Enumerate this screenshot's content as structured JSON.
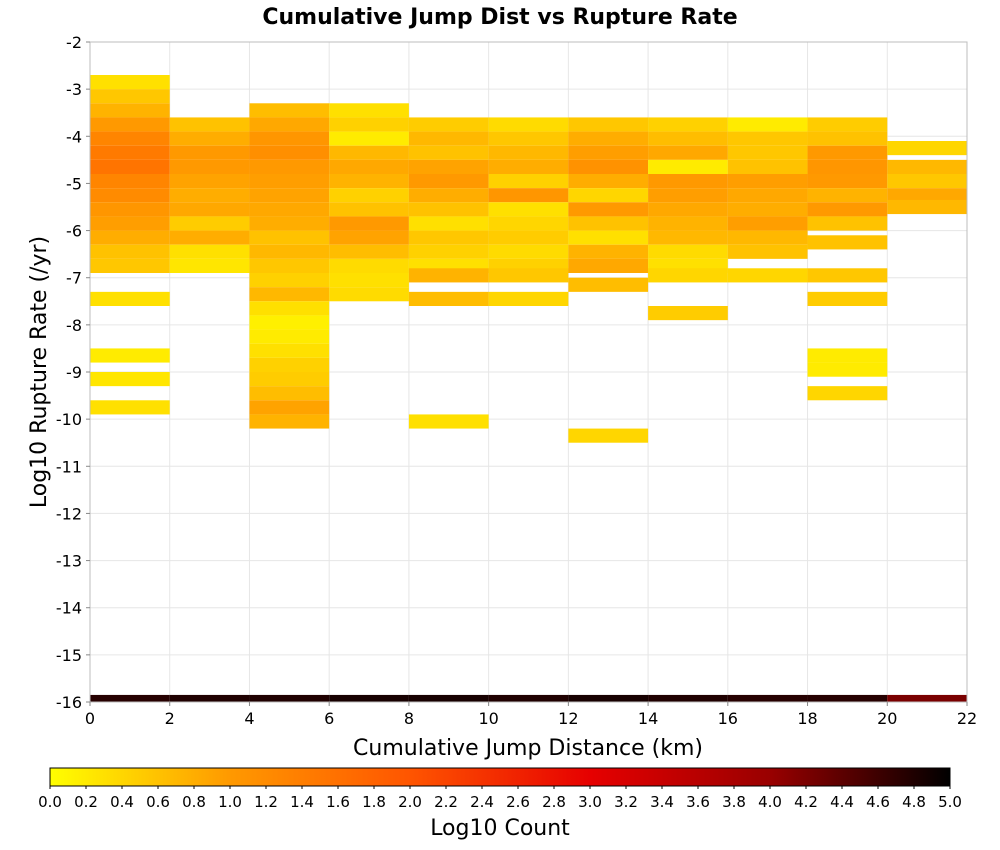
{
  "chart_data": {
    "type": "heatmap",
    "title": "Cumulative Jump Dist vs Rupture Rate",
    "xlabel": "Cumulative Jump Distance (km)",
    "ylabel": "Log10 Rupture Rate (/yr)",
    "xlim": [
      0,
      22
    ],
    "ylim": [
      -16,
      -2
    ],
    "x_ticks": [
      0,
      2,
      4,
      6,
      8,
      10,
      12,
      14,
      16,
      18,
      20,
      22
    ],
    "y_ticks": [
      -2,
      -3,
      -4,
      -5,
      -6,
      -7,
      -8,
      -9,
      -10,
      -11,
      -12,
      -13,
      -14,
      -15,
      -16
    ],
    "grid": true,
    "x_bin_width": 2,
    "y_bin_width": 0.3,
    "colorbar": {
      "label": "Log10 Count",
      "range": [
        0,
        5
      ],
      "ticks": [
        0.0,
        0.2,
        0.4,
        0.6,
        0.8,
        1.0,
        1.2,
        1.4,
        1.6,
        1.8,
        2.0,
        2.2,
        2.4,
        2.6,
        2.8,
        3.0,
        3.2,
        3.4,
        3.6,
        3.8,
        4.0,
        4.2,
        4.4,
        4.6,
        4.8,
        5.0
      ],
      "colors": [
        "#ffff00",
        "#ff9900",
        "#ff5500",
        "#e60000",
        "#990000",
        "#000000"
      ]
    },
    "bins": [
      {
        "x": 1,
        "y": -2.85,
        "v": 0.3
      },
      {
        "x": 1,
        "y": -3.15,
        "v": 0.55
      },
      {
        "x": 1,
        "y": -3.45,
        "v": 0.75
      },
      {
        "x": 1,
        "y": -3.75,
        "v": 1.0
      },
      {
        "x": 1,
        "y": -4.05,
        "v": 1.3
      },
      {
        "x": 1,
        "y": -4.35,
        "v": 1.45
      },
      {
        "x": 1,
        "y": -4.65,
        "v": 1.55
      },
      {
        "x": 1,
        "y": -4.95,
        "v": 1.3
      },
      {
        "x": 1,
        "y": -5.25,
        "v": 1.2
      },
      {
        "x": 1,
        "y": -5.55,
        "v": 1.05
      },
      {
        "x": 1,
        "y": -5.85,
        "v": 0.95
      },
      {
        "x": 1,
        "y": -6.15,
        "v": 0.8
      },
      {
        "x": 1,
        "y": -6.45,
        "v": 0.6
      },
      {
        "x": 1,
        "y": -6.75,
        "v": 0.55
      },
      {
        "x": 1,
        "y": -7.45,
        "v": 0.3
      },
      {
        "x": 1,
        "y": -8.65,
        "v": 0.2
      },
      {
        "x": 1,
        "y": -9.15,
        "v": 0.25
      },
      {
        "x": 1,
        "y": -9.75,
        "v": 0.3
      },
      {
        "x": 3,
        "y": -3.75,
        "v": 0.6
      },
      {
        "x": 3,
        "y": -4.05,
        "v": 0.8
      },
      {
        "x": 3,
        "y": -4.35,
        "v": 1.0
      },
      {
        "x": 3,
        "y": -4.65,
        "v": 1.0
      },
      {
        "x": 3,
        "y": -4.95,
        "v": 0.9
      },
      {
        "x": 3,
        "y": -5.25,
        "v": 0.8
      },
      {
        "x": 3,
        "y": -5.55,
        "v": 0.85
      },
      {
        "x": 3,
        "y": -5.85,
        "v": 0.5
      },
      {
        "x": 3,
        "y": -6.15,
        "v": 0.8
      },
      {
        "x": 3,
        "y": -6.45,
        "v": 0.3
      },
      {
        "x": 3,
        "y": -6.75,
        "v": 0.25
      },
      {
        "x": 5,
        "y": -3.45,
        "v": 0.65
      },
      {
        "x": 5,
        "y": -3.75,
        "v": 0.85
      },
      {
        "x": 5,
        "y": -4.05,
        "v": 1.05
      },
      {
        "x": 5,
        "y": -4.35,
        "v": 1.15
      },
      {
        "x": 5,
        "y": -4.65,
        "v": 1.0
      },
      {
        "x": 5,
        "y": -4.95,
        "v": 0.95
      },
      {
        "x": 5,
        "y": -5.25,
        "v": 0.9
      },
      {
        "x": 5,
        "y": -5.55,
        "v": 0.85
      },
      {
        "x": 5,
        "y": -5.85,
        "v": 0.8
      },
      {
        "x": 5,
        "y": -6.15,
        "v": 0.6
      },
      {
        "x": 5,
        "y": -6.45,
        "v": 0.7
      },
      {
        "x": 5,
        "y": -6.75,
        "v": 0.55
      },
      {
        "x": 5,
        "y": -7.05,
        "v": 0.45
      },
      {
        "x": 5,
        "y": -7.35,
        "v": 0.7
      },
      {
        "x": 5,
        "y": -7.65,
        "v": 0.3
      },
      {
        "x": 5,
        "y": -7.95,
        "v": 0.15
      },
      {
        "x": 5,
        "y": -8.25,
        "v": 0.2
      },
      {
        "x": 5,
        "y": -8.55,
        "v": 0.3
      },
      {
        "x": 5,
        "y": -8.85,
        "v": 0.45
      },
      {
        "x": 5,
        "y": -9.15,
        "v": 0.5
      },
      {
        "x": 5,
        "y": -9.45,
        "v": 0.65
      },
      {
        "x": 5,
        "y": -9.75,
        "v": 0.9
      },
      {
        "x": 5,
        "y": -10.05,
        "v": 0.75
      },
      {
        "x": 7,
        "y": -3.45,
        "v": 0.3
      },
      {
        "x": 7,
        "y": -3.75,
        "v": 0.45
      },
      {
        "x": 7,
        "y": -4.05,
        "v": 0.2
      },
      {
        "x": 7,
        "y": -4.35,
        "v": 0.7
      },
      {
        "x": 7,
        "y": -4.65,
        "v": 0.85
      },
      {
        "x": 7,
        "y": -4.95,
        "v": 0.75
      },
      {
        "x": 7,
        "y": -5.25,
        "v": 0.45
      },
      {
        "x": 7,
        "y": -5.55,
        "v": 0.6
      },
      {
        "x": 7,
        "y": -5.85,
        "v": 1.0
      },
      {
        "x": 7,
        "y": -6.15,
        "v": 0.9
      },
      {
        "x": 7,
        "y": -6.45,
        "v": 0.65
      },
      {
        "x": 7,
        "y": -6.75,
        "v": 0.35
      },
      {
        "x": 7,
        "y": -7.05,
        "v": 0.3
      },
      {
        "x": 7,
        "y": -7.35,
        "v": 0.35
      },
      {
        "x": 9,
        "y": -3.75,
        "v": 0.5
      },
      {
        "x": 9,
        "y": -4.05,
        "v": 0.7
      },
      {
        "x": 9,
        "y": -4.35,
        "v": 0.6
      },
      {
        "x": 9,
        "y": -4.65,
        "v": 0.9
      },
      {
        "x": 9,
        "y": -4.95,
        "v": 1.0
      },
      {
        "x": 9,
        "y": -5.25,
        "v": 0.8
      },
      {
        "x": 9,
        "y": -5.55,
        "v": 0.6
      },
      {
        "x": 9,
        "y": -5.85,
        "v": 0.3
      },
      {
        "x": 9,
        "y": -6.15,
        "v": 0.55
      },
      {
        "x": 9,
        "y": -6.45,
        "v": 0.45
      },
      {
        "x": 9,
        "y": -6.75,
        "v": 0.3
      },
      {
        "x": 9,
        "y": -6.95,
        "v": 0.75
      },
      {
        "x": 9,
        "y": -7.45,
        "v": 0.65
      },
      {
        "x": 9,
        "y": -10.05,
        "v": 0.3
      },
      {
        "x": 11,
        "y": -3.75,
        "v": 0.35
      },
      {
        "x": 11,
        "y": -4.05,
        "v": 0.55
      },
      {
        "x": 11,
        "y": -4.35,
        "v": 0.7
      },
      {
        "x": 11,
        "y": -4.65,
        "v": 0.8
      },
      {
        "x": 11,
        "y": -4.95,
        "v": 0.45
      },
      {
        "x": 11,
        "y": -5.25,
        "v": 1.05
      },
      {
        "x": 11,
        "y": -5.55,
        "v": 0.3
      },
      {
        "x": 11,
        "y": -5.85,
        "v": 0.4
      },
      {
        "x": 11,
        "y": -6.15,
        "v": 0.5
      },
      {
        "x": 11,
        "y": -6.45,
        "v": 0.35
      },
      {
        "x": 11,
        "y": -6.75,
        "v": 0.45
      },
      {
        "x": 11,
        "y": -6.95,
        "v": 0.55
      },
      {
        "x": 11,
        "y": -7.45,
        "v": 0.4
      },
      {
        "x": 13,
        "y": -3.75,
        "v": 0.55
      },
      {
        "x": 13,
        "y": -4.05,
        "v": 0.8
      },
      {
        "x": 13,
        "y": -4.35,
        "v": 0.95
      },
      {
        "x": 13,
        "y": -4.65,
        "v": 1.1
      },
      {
        "x": 13,
        "y": -4.95,
        "v": 0.8
      },
      {
        "x": 13,
        "y": -5.25,
        "v": 0.4
      },
      {
        "x": 13,
        "y": -5.55,
        "v": 1.0
      },
      {
        "x": 13,
        "y": -5.85,
        "v": 0.6
      },
      {
        "x": 13,
        "y": -6.15,
        "v": 0.3
      },
      {
        "x": 13,
        "y": -6.45,
        "v": 0.75
      },
      {
        "x": 13,
        "y": -6.75,
        "v": 0.85
      },
      {
        "x": 13,
        "y": -7.15,
        "v": 0.65
      },
      {
        "x": 13,
        "y": -10.35,
        "v": 0.4
      },
      {
        "x": 15,
        "y": -3.75,
        "v": 0.45
      },
      {
        "x": 15,
        "y": -4.05,
        "v": 0.65
      },
      {
        "x": 15,
        "y": -4.35,
        "v": 0.85
      },
      {
        "x": 15,
        "y": -4.65,
        "v": 0.2
      },
      {
        "x": 15,
        "y": -4.95,
        "v": 1.0
      },
      {
        "x": 15,
        "y": -5.25,
        "v": 0.95
      },
      {
        "x": 15,
        "y": -5.55,
        "v": 0.85
      },
      {
        "x": 15,
        "y": -5.85,
        "v": 0.75
      },
      {
        "x": 15,
        "y": -6.15,
        "v": 0.7
      },
      {
        "x": 15,
        "y": -6.45,
        "v": 0.35
      },
      {
        "x": 15,
        "y": -6.75,
        "v": 0.3
      },
      {
        "x": 15,
        "y": -6.95,
        "v": 0.4
      },
      {
        "x": 15,
        "y": -7.75,
        "v": 0.5
      },
      {
        "x": 17,
        "y": -3.75,
        "v": 0.2
      },
      {
        "x": 17,
        "y": -4.05,
        "v": 0.55
      },
      {
        "x": 17,
        "y": -4.35,
        "v": 0.55
      },
      {
        "x": 17,
        "y": -4.65,
        "v": 0.6
      },
      {
        "x": 17,
        "y": -4.95,
        "v": 0.95
      },
      {
        "x": 17,
        "y": -5.25,
        "v": 0.85
      },
      {
        "x": 17,
        "y": -5.55,
        "v": 0.8
      },
      {
        "x": 17,
        "y": -5.85,
        "v": 0.95
      },
      {
        "x": 17,
        "y": -6.15,
        "v": 0.7
      },
      {
        "x": 17,
        "y": -6.45,
        "v": 0.6
      },
      {
        "x": 17,
        "y": -6.95,
        "v": 0.4
      },
      {
        "x": 19,
        "y": -3.75,
        "v": 0.5
      },
      {
        "x": 19,
        "y": -4.05,
        "v": 0.6
      },
      {
        "x": 19,
        "y": -4.35,
        "v": 1.0
      },
      {
        "x": 19,
        "y": -4.65,
        "v": 1.05
      },
      {
        "x": 19,
        "y": -4.95,
        "v": 1.0
      },
      {
        "x": 19,
        "y": -5.25,
        "v": 0.75
      },
      {
        "x": 19,
        "y": -5.55,
        "v": 1.0
      },
      {
        "x": 19,
        "y": -5.85,
        "v": 0.6
      },
      {
        "x": 19,
        "y": -6.25,
        "v": 0.6
      },
      {
        "x": 19,
        "y": -6.95,
        "v": 0.55
      },
      {
        "x": 19,
        "y": -7.45,
        "v": 0.5
      },
      {
        "x": 19,
        "y": -8.65,
        "v": 0.2
      },
      {
        "x": 19,
        "y": -8.95,
        "v": 0.2
      },
      {
        "x": 19,
        "y": -9.45,
        "v": 0.4
      },
      {
        "x": 21,
        "y": -4.25,
        "v": 0.4
      },
      {
        "x": 21,
        "y": -4.65,
        "v": 0.7
      },
      {
        "x": 21,
        "y": -4.95,
        "v": 0.55
      },
      {
        "x": 21,
        "y": -5.25,
        "v": 0.85
      },
      {
        "x": 21,
        "y": -5.5,
        "v": 0.7
      }
    ],
    "base_row": {
      "y": -15.95,
      "v": [
        4.75,
        4.8,
        4.8,
        4.85,
        4.85,
        4.8,
        4.85,
        4.8,
        4.75,
        4.75,
        4.2
      ]
    }
  }
}
